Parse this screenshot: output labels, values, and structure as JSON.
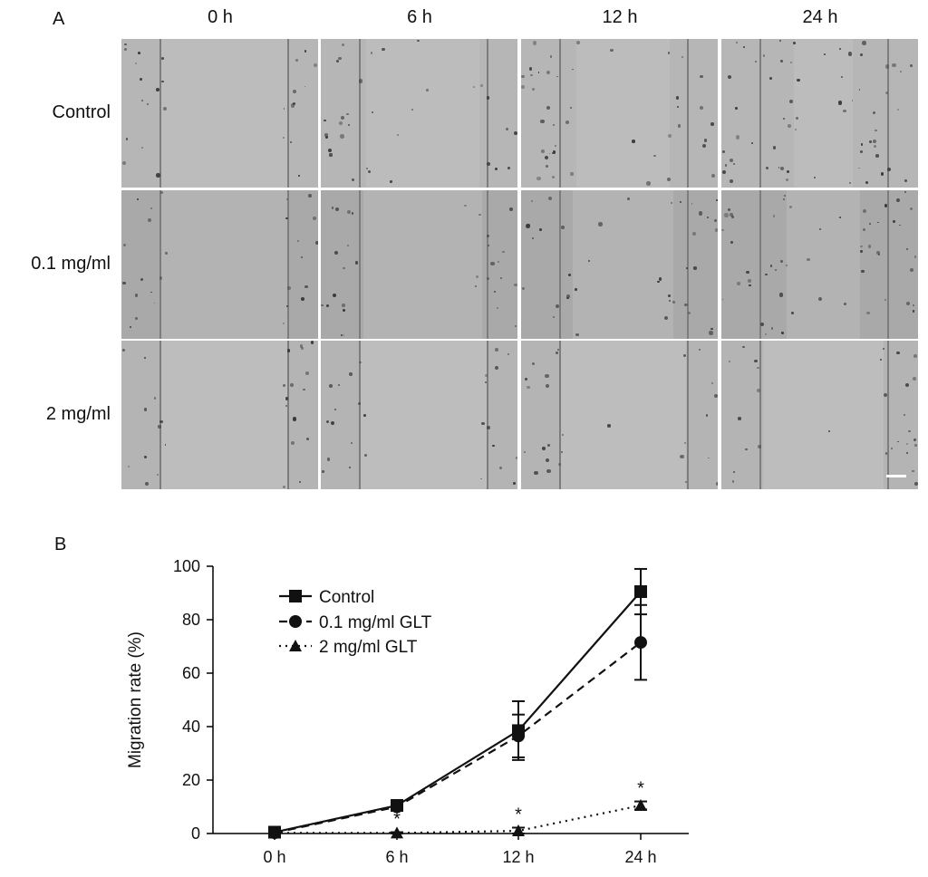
{
  "panel_a": {
    "letter": "A",
    "columns": [
      "0 h",
      "6 h",
      "12 h",
      "24 h"
    ],
    "rows": [
      "Control",
      "0.1 mg/ml",
      "2 mg/ml"
    ],
    "gap_closure": [
      [
        0.0,
        0.18,
        0.45,
        0.9
      ],
      [
        0.0,
        0.12,
        0.35,
        0.72
      ],
      [
        0.0,
        0.0,
        0.02,
        0.1
      ]
    ]
  },
  "panel_b": {
    "letter": "B"
  },
  "chart_data": {
    "type": "line",
    "categories": [
      "0 h",
      "6 h",
      "12 h",
      "24 h"
    ],
    "ylabel": "Migration rate (%)",
    "xlabel": "",
    "ylim": [
      0,
      100
    ],
    "yticks": [
      0,
      20,
      40,
      60,
      80,
      100
    ],
    "legend_position": "top-left",
    "series": [
      {
        "name": "Control",
        "values": [
          0.5,
          10.5,
          38.5,
          90.5
        ],
        "errors": [
          0.5,
          1.5,
          11,
          8.5
        ],
        "marker": "square",
        "dash": "solid",
        "significant": [
          false,
          false,
          false,
          false
        ]
      },
      {
        "name": "0.1 mg/ml GLT",
        "values": [
          0.3,
          10.0,
          36.5,
          71.5
        ],
        "errors": [
          0.5,
          1.2,
          8,
          14
        ],
        "marker": "circle",
        "dash": "dashed",
        "significant": [
          false,
          false,
          false,
          false
        ]
      },
      {
        "name": "2 mg/ml GLT",
        "values": [
          0.2,
          0.2,
          1.0,
          10.5
        ],
        "errors": [
          0.3,
          0.3,
          1.2,
          1.5
        ],
        "marker": "triangle",
        "dash": "dotted",
        "significant": [
          false,
          true,
          true,
          true
        ]
      }
    ],
    "annotation": "*"
  }
}
